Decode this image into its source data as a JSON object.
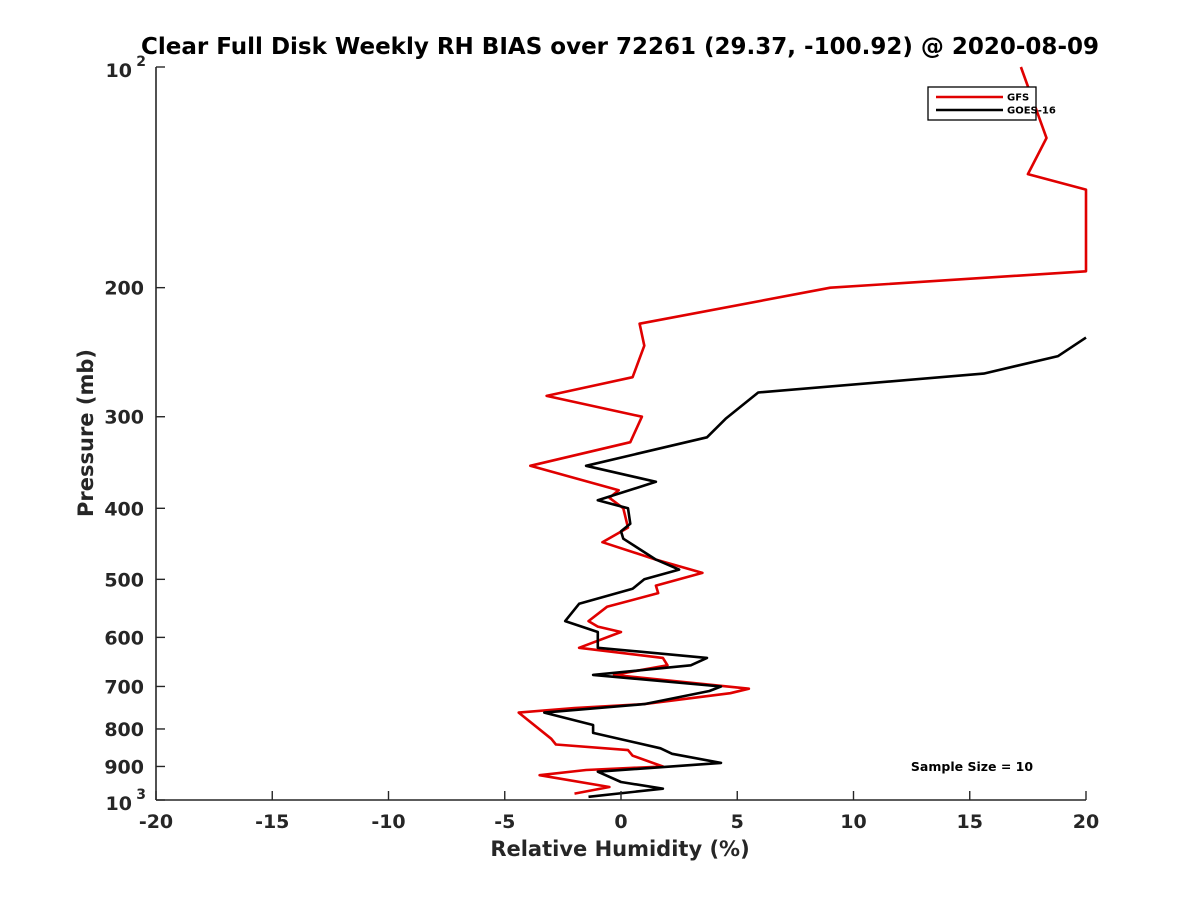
{
  "chart_data": {
    "type": "line",
    "title": "Clear Full Disk Weekly RH BIAS over 72261 (29.37, -100.92) @ 2020-08-09",
    "xlabel": "Relative Humidity (%)",
    "ylabel": "Pressure (mb)",
    "xlim": [
      -20,
      20
    ],
    "ylim": [
      100,
      1000
    ],
    "y_scale": "log",
    "y_reversed": true,
    "x_ticks": [
      "-20",
      "-15",
      "-10",
      "-5",
      "0",
      "5",
      "10",
      "15",
      "20"
    ],
    "y_ticks": [
      {
        "value": 100,
        "base": "10",
        "exp": "2"
      },
      {
        "value": 200,
        "base": "200",
        "exp": ""
      },
      {
        "value": 300,
        "base": "300",
        "exp": ""
      },
      {
        "value": 400,
        "base": "400",
        "exp": ""
      },
      {
        "value": 500,
        "base": "500",
        "exp": ""
      },
      {
        "value": 600,
        "base": "600",
        "exp": ""
      },
      {
        "value": 700,
        "base": "700",
        "exp": ""
      },
      {
        "value": 800,
        "base": "800",
        "exp": ""
      },
      {
        "value": 900,
        "base": "900",
        "exp": ""
      },
      {
        "value": 1000,
        "base": "10",
        "exp": "3"
      }
    ],
    "grid": false,
    "legend_position": "top-right",
    "annotation": "Sample Size = 10",
    "series": [
      {
        "name": "GFS",
        "color": "#e00000",
        "points": [
          [
            17.2,
            100
          ],
          [
            18.3,
            125
          ],
          [
            17.5,
            140
          ],
          [
            20.0,
            147
          ],
          [
            20.0,
            190
          ],
          [
            9.0,
            200
          ],
          [
            0.8,
            224
          ],
          [
            1.0,
            240
          ],
          [
            0.5,
            265
          ],
          [
            -3.2,
            281
          ],
          [
            0.9,
            300
          ],
          [
            0.4,
            325
          ],
          [
            -3.9,
            350
          ],
          [
            -0.1,
            378
          ],
          [
            -0.5,
            387
          ],
          [
            0.1,
            400
          ],
          [
            0.3,
            425
          ],
          [
            -0.8,
            445
          ],
          [
            1.5,
            470
          ],
          [
            3.5,
            490
          ],
          [
            1.5,
            510
          ],
          [
            1.6,
            522
          ],
          [
            -0.6,
            545
          ],
          [
            -1.4,
            570
          ],
          [
            -1.0,
            580
          ],
          [
            0.0,
            590
          ],
          [
            -1.8,
            620
          ],
          [
            1.8,
            640
          ],
          [
            2.0,
            655
          ],
          [
            -0.3,
            675
          ],
          [
            5.5,
            705
          ],
          [
            4.7,
            715
          ],
          [
            1.0,
            740
          ],
          [
            -2.0,
            749
          ],
          [
            -4.4,
            760
          ],
          [
            -3.0,
            825
          ],
          [
            -2.8,
            840
          ],
          [
            0.3,
            855
          ],
          [
            0.5,
            870
          ],
          [
            1.8,
            900
          ],
          [
            -1.5,
            910
          ],
          [
            -3.5,
            925
          ],
          [
            -0.5,
            960
          ],
          [
            -2.0,
            980
          ]
        ]
      },
      {
        "name": "GOES-16",
        "color": "#000000",
        "points": [
          [
            20.0,
            234
          ],
          [
            18.8,
            248
          ],
          [
            15.6,
            262
          ],
          [
            5.9,
            278
          ],
          [
            4.5,
            302
          ],
          [
            3.7,
            320
          ],
          [
            -1.5,
            350
          ],
          [
            1.5,
            368
          ],
          [
            -1.0,
            390
          ],
          [
            0.3,
            400
          ],
          [
            0.4,
            420
          ],
          [
            0.0,
            430
          ],
          [
            0.1,
            440
          ],
          [
            1.5,
            470
          ],
          [
            2.5,
            485
          ],
          [
            1.0,
            500
          ],
          [
            0.5,
            515
          ],
          [
            -1.8,
            540
          ],
          [
            -2.4,
            570
          ],
          [
            -1.0,
            590
          ],
          [
            -1.0,
            610
          ],
          [
            -1.0,
            620
          ],
          [
            3.7,
            640
          ],
          [
            3.0,
            655
          ],
          [
            -1.2,
            675
          ],
          [
            4.3,
            700
          ],
          [
            3.8,
            710
          ],
          [
            1.0,
            740
          ],
          [
            -3.3,
            760
          ],
          [
            -1.2,
            790
          ],
          [
            -1.2,
            810
          ],
          [
            1.7,
            850
          ],
          [
            2.2,
            865
          ],
          [
            4.3,
            890
          ],
          [
            -1.0,
            915
          ],
          [
            0.0,
            945
          ],
          [
            1.8,
            965
          ],
          [
            -1.4,
            990
          ]
        ]
      }
    ]
  }
}
